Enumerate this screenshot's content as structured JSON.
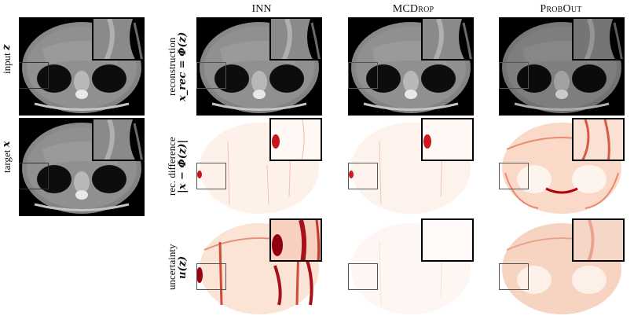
{
  "left_labels": {
    "input": "input",
    "input_var": "z",
    "target": "target",
    "target_var": "x"
  },
  "columns": [
    {
      "title": "INN",
      "small_caps": false
    },
    {
      "title": "MCDrop",
      "small_caps": true
    },
    {
      "title": "ProbOut",
      "small_caps": true
    }
  ],
  "rows": [
    {
      "line1": "reconstruction",
      "line2": "x_rec = Φ(z)"
    },
    {
      "line1": "rec. difference",
      "line2": "|x − Φ(z)|"
    },
    {
      "line1": "uncertainty",
      "line2": "u(z)"
    }
  ],
  "colors": {
    "ct_bg": "#000000",
    "heat_light": "#fdeee6",
    "heat_dark": "#b5000e"
  }
}
